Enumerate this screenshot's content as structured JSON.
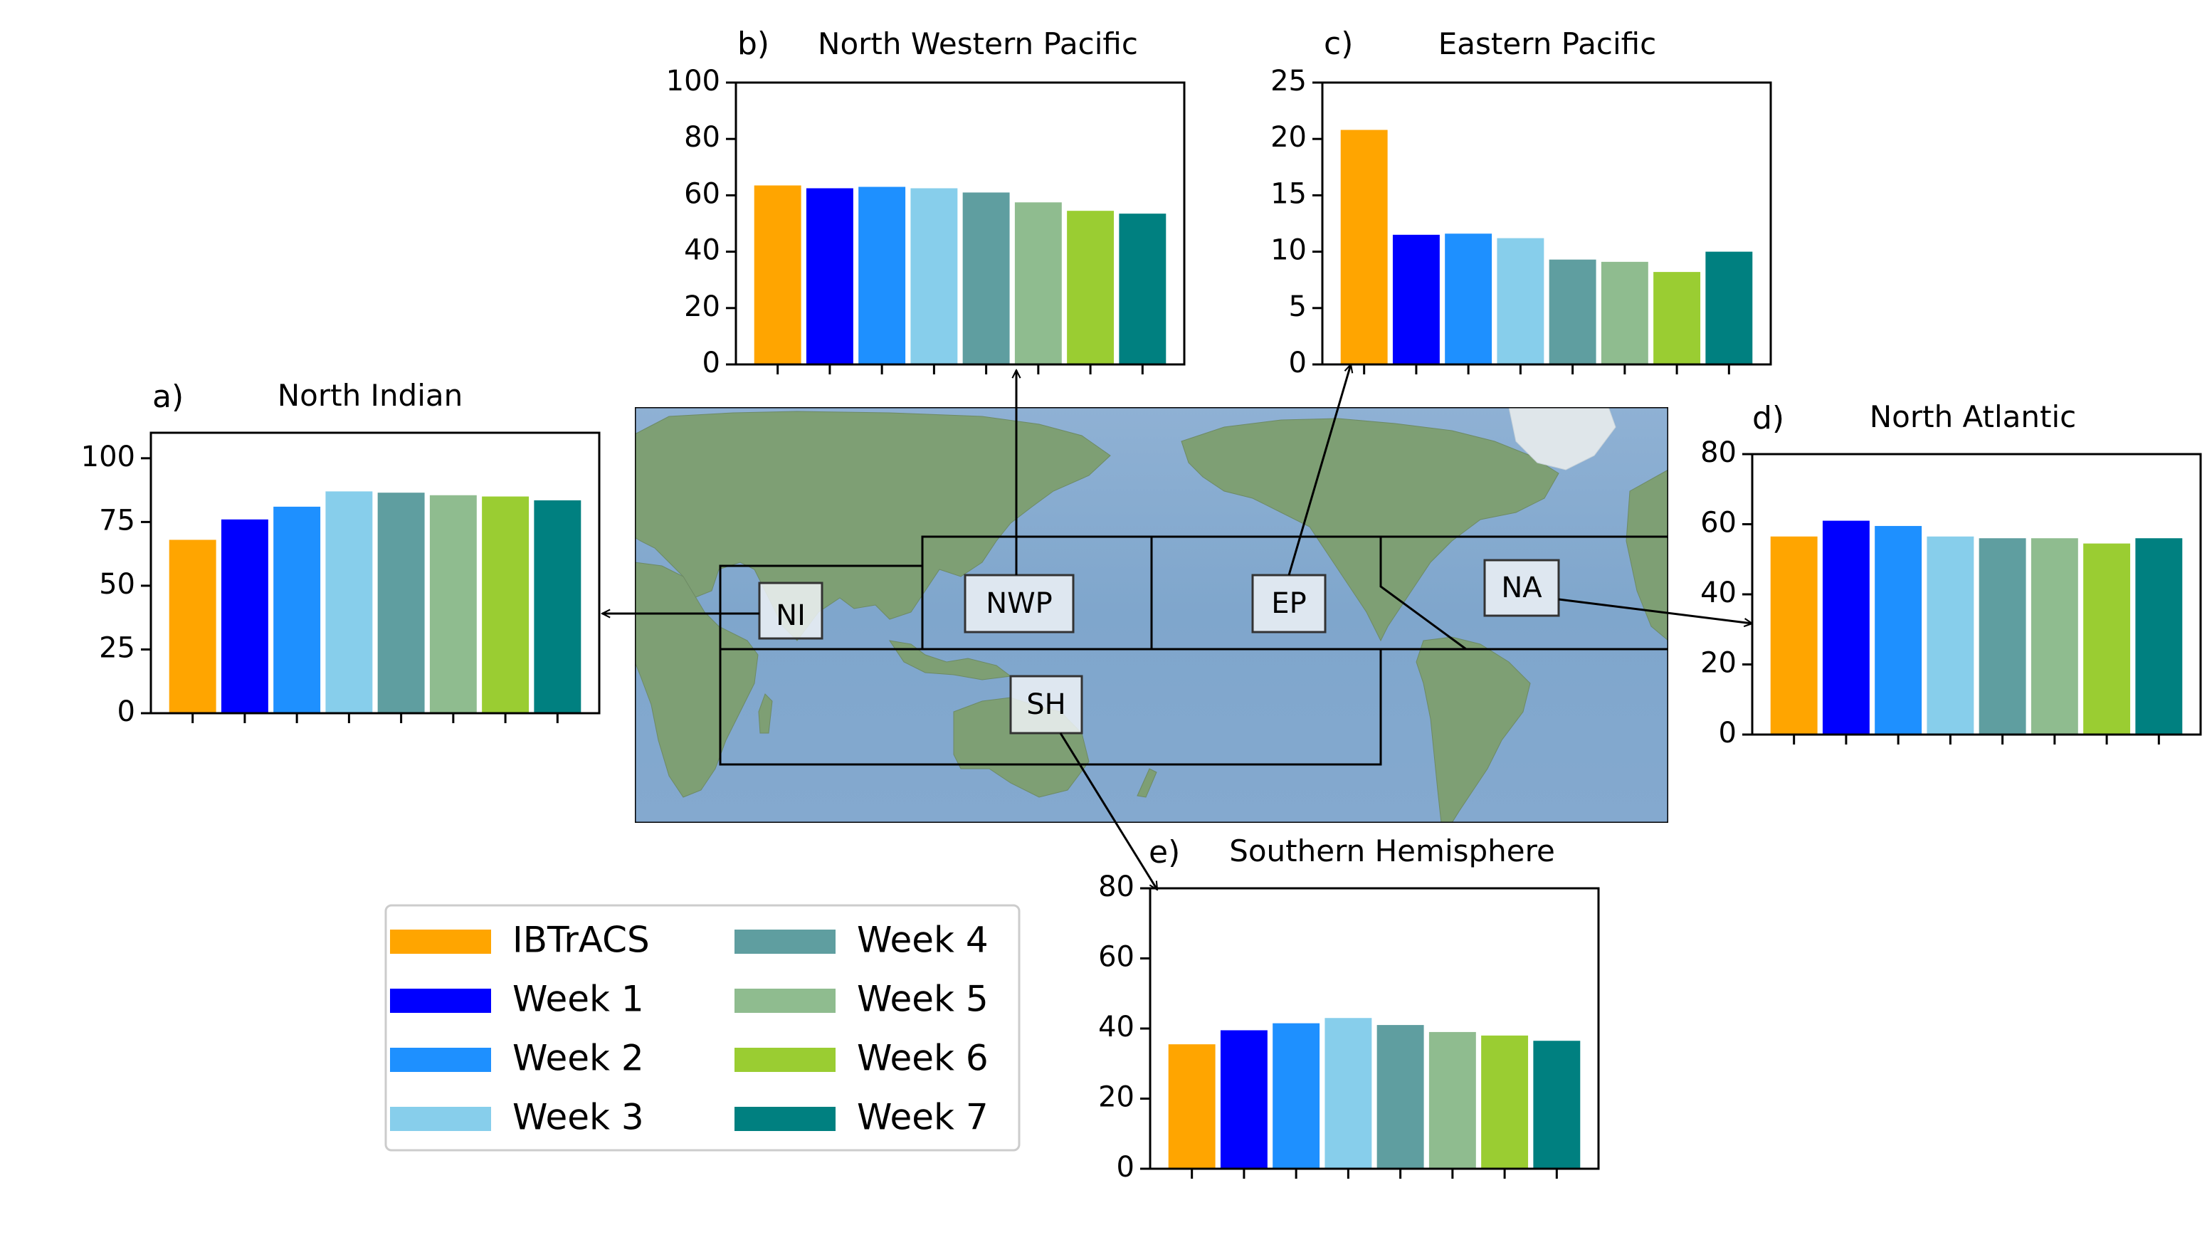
{
  "colors": {
    "IBTrACS": "#FFA500",
    "Week 1": "#0000FF",
    "Week 2": "#1E90FF",
    "Week 3": "#87CEEB",
    "Week 4": "#5F9EA0",
    "Week 5": "#8FBC8F",
    "Week 6": "#9ACD32",
    "Week 7": "#008080"
  },
  "legend": {
    "entries": [
      "IBTrACS",
      "Week 1",
      "Week 2",
      "Week 3",
      "Week 4",
      "Week 5",
      "Week 6",
      "Week 7"
    ]
  },
  "map": {
    "region_labels": [
      "NI",
      "NWP",
      "EP",
      "NA",
      "SH"
    ]
  },
  "chart_data": [
    {
      "id": "a",
      "type": "bar",
      "panel_letter": "a)",
      "title": "North Indian",
      "categories": [
        "IBTrACS",
        "Week 1",
        "Week 2",
        "Week 3",
        "Week 4",
        "Week 5",
        "Week 6",
        "Week 7"
      ],
      "values": [
        68,
        76,
        81,
        87,
        86.5,
        85.5,
        85,
        83.5
      ],
      "ylim": [
        0,
        110
      ],
      "yticks": [
        0,
        25,
        50,
        75,
        100
      ],
      "xlabel": "",
      "ylabel": "",
      "xtick_labels_shown": false
    },
    {
      "id": "b",
      "type": "bar",
      "panel_letter": "b)",
      "title": "North Western Pacific",
      "categories": [
        "IBTrACS",
        "Week 1",
        "Week 2",
        "Week 3",
        "Week 4",
        "Week 5",
        "Week 6",
        "Week 7"
      ],
      "values": [
        63.5,
        62.5,
        63,
        62.5,
        61,
        57.5,
        54.5,
        53.5
      ],
      "ylim": [
        0,
        100
      ],
      "yticks": [
        0,
        20,
        40,
        60,
        80,
        100
      ],
      "xlabel": "",
      "ylabel": "",
      "xtick_labels_shown": false
    },
    {
      "id": "c",
      "type": "bar",
      "panel_letter": "c)",
      "title": "Eastern Pacific",
      "categories": [
        "IBTrACS",
        "Week 1",
        "Week 2",
        "Week 3",
        "Week 4",
        "Week 5",
        "Week 6",
        "Week 7"
      ],
      "values": [
        20.8,
        11.5,
        11.6,
        11.2,
        9.3,
        9.1,
        8.2,
        10
      ],
      "ylim": [
        0,
        25
      ],
      "yticks": [
        0,
        5,
        10,
        15,
        20,
        25
      ],
      "xlabel": "",
      "ylabel": "",
      "xtick_labels_shown": false
    },
    {
      "id": "d",
      "type": "bar",
      "panel_letter": "d)",
      "title": "North Atlantic",
      "categories": [
        "IBTrACS",
        "Week 1",
        "Week 2",
        "Week 3",
        "Week 4",
        "Week 5",
        "Week 6",
        "Week 7"
      ],
      "values": [
        56.5,
        61,
        59.5,
        56.5,
        56,
        56,
        54.5,
        56
      ],
      "ylim": [
        0,
        80
      ],
      "yticks": [
        0,
        20,
        40,
        60,
        80
      ],
      "xlabel": "",
      "ylabel": "",
      "xtick_labels_shown": false
    },
    {
      "id": "e",
      "type": "bar",
      "panel_letter": "e)",
      "title": "Southern Hemisphere",
      "categories": [
        "IBTrACS",
        "Week 1",
        "Week 2",
        "Week 3",
        "Week 4",
        "Week 5",
        "Week 6",
        "Week 7"
      ],
      "values": [
        35.5,
        39.5,
        41.5,
        43,
        41,
        39,
        38,
        36.5
      ],
      "ylim": [
        0,
        80
      ],
      "yticks": [
        0,
        20,
        40,
        60,
        80
      ],
      "xlabel": "",
      "ylabel": "",
      "xtick_labels_shown": false
    }
  ]
}
